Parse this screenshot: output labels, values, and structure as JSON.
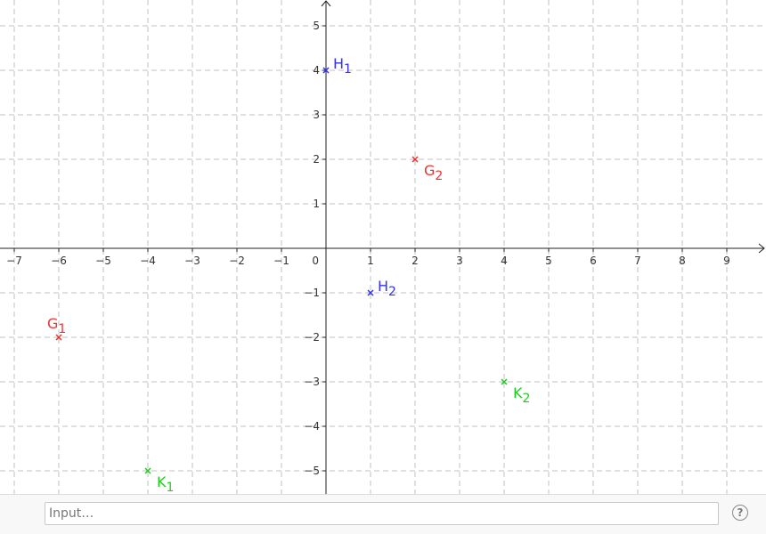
{
  "chart_data": {
    "type": "scatter",
    "title": "",
    "xlabel": "",
    "ylabel": "",
    "xlim": [
      -7.3,
      9.8
    ],
    "ylim": [
      -5.5,
      5.6
    ],
    "grid": true,
    "x_ticks": [
      -7,
      -6,
      -5,
      -4,
      -3,
      -2,
      -1,
      0,
      1,
      2,
      3,
      4,
      5,
      6,
      7,
      8,
      9
    ],
    "y_ticks": [
      -5,
      -4,
      -3,
      -2,
      -1,
      1,
      2,
      3,
      4,
      5
    ],
    "origin_label": "0",
    "points": [
      {
        "id": "H1",
        "base": "H",
        "sub": "1",
        "x": 0,
        "y": 4,
        "color": "#3333ee",
        "label_pos": "right-up"
      },
      {
        "id": "H2",
        "base": "H",
        "sub": "2",
        "x": 1,
        "y": -1,
        "color": "#3333ee",
        "label_pos": "right-up"
      },
      {
        "id": "G1",
        "base": "G",
        "sub": "1",
        "x": -6,
        "y": -2,
        "color": "#ee3333",
        "label_pos": "left-up"
      },
      {
        "id": "G2",
        "base": "G",
        "sub": "2",
        "x": 2,
        "y": 2,
        "color": "#ee3333",
        "label_pos": "right-down"
      },
      {
        "id": "K1",
        "base": "K",
        "sub": "1",
        "x": -4,
        "y": -5,
        "color": "#22cc22",
        "label_pos": "right-down"
      },
      {
        "id": "K2",
        "base": "K",
        "sub": "2",
        "x": 4,
        "y": -3,
        "color": "#22cc22",
        "label_pos": "right-down"
      }
    ]
  },
  "input_bar": {
    "placeholder": "Input…",
    "help_label": "?"
  }
}
